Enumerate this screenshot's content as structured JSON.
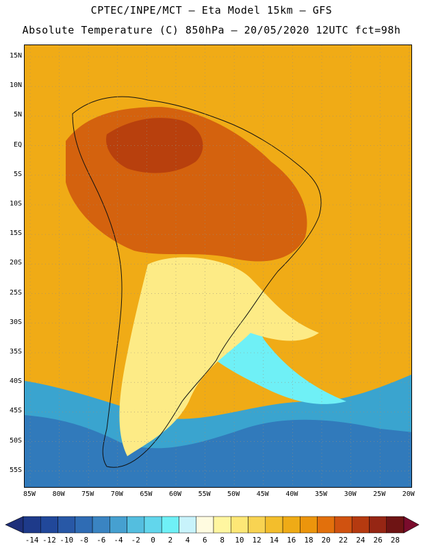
{
  "header": {
    "line1": "CPTEC/INPE/MCT —  Eta Model 15km — GFS",
    "line2": "Absolute Temperature (C) 850hPa — 20/05/2020 12UTC fct=98h"
  },
  "map": {
    "region": "South America",
    "variable": "Absolute Temperature (C) 850hPa",
    "lat_ticks": [
      "15N",
      "10N",
      "5N",
      "EQ",
      "5S",
      "10S",
      "15S",
      "20S",
      "25S",
      "30S",
      "35S",
      "40S",
      "45S",
      "50S",
      "55S"
    ],
    "lon_ticks": [
      "85W",
      "80W",
      "75W",
      "70W",
      "65W",
      "60W",
      "55W",
      "50W",
      "45W",
      "40W",
      "35W",
      "30W",
      "25W",
      "20W"
    ]
  },
  "colorbar": {
    "labels": [
      "-14",
      "-12",
      "-10",
      "-8",
      "-6",
      "-4",
      "-2",
      "0",
      "2",
      "4",
      "6",
      "8",
      "10",
      "12",
      "14",
      "16",
      "18",
      "20",
      "22",
      "24",
      "26",
      "28"
    ],
    "colors": [
      "#1e3a8a",
      "#21489a",
      "#2858a6",
      "#2f6cb4",
      "#3a84c2",
      "#46a0d0",
      "#54bedf",
      "#62d6ec",
      "#6ff0f6",
      "#c8f3fb",
      "#fffbe0",
      "#fff6a0",
      "#fde776",
      "#f8d352",
      "#f3be2c",
      "#efab16",
      "#ec950c",
      "#e2700c",
      "#d05210",
      "#b53a10",
      "#962614",
      "#6e1414"
    ],
    "low_arrow_color": "#1e2f7a",
    "high_arrow_color": "#7a0c2c"
  },
  "palette": {
    "ocean_warm": "#f0ab16",
    "land_hot": "#d4620e",
    "land_hotter": "#b8400d",
    "cool_yellow": "#fdeb86",
    "cold_cyan": "#6ff0f6",
    "cold_blue": "#3aa4cf"
  }
}
